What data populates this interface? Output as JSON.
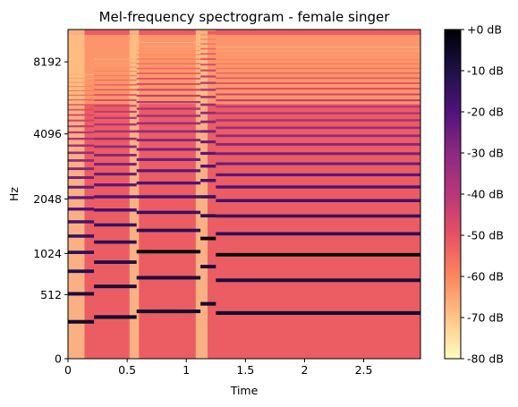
{
  "chart_data": {
    "type": "heatmap",
    "title": "Mel-frequency spectrogram - female singer",
    "xlabel": "Time",
    "ylabel": "Hz",
    "xlim": [
      0,
      2.98
    ],
    "xticks": [
      {
        "value": 0,
        "label": "0"
      },
      {
        "value": 0.5,
        "label": "0.5"
      },
      {
        "value": 1,
        "label": "1"
      },
      {
        "value": 1.5,
        "label": "1.5"
      },
      {
        "value": 2,
        "label": "2"
      },
      {
        "value": 2.5,
        "label": "2.5"
      }
    ],
    "yscale": "mel",
    "ylim": [
      0,
      11025
    ],
    "yticks": [
      {
        "value": 0,
        "label": "0"
      },
      {
        "value": 512,
        "label": "512"
      },
      {
        "value": 1024,
        "label": "1024"
      },
      {
        "value": 2048,
        "label": "2048"
      },
      {
        "value": 4096,
        "label": "4096"
      },
      {
        "value": 8192,
        "label": "8192"
      }
    ],
    "colormap": "magma",
    "colorbar": {
      "range": [
        -80,
        0
      ],
      "ticks": [
        {
          "value": 0,
          "label": "+0 dB"
        },
        {
          "value": -10,
          "label": "-10 dB"
        },
        {
          "value": -20,
          "label": "-20 dB"
        },
        {
          "value": -30,
          "label": "-30 dB"
        },
        {
          "value": -40,
          "label": "-40 dB"
        },
        {
          "value": -50,
          "label": "-50 dB"
        },
        {
          "value": -60,
          "label": "-60 dB"
        },
        {
          "value": -70,
          "label": "-70 dB"
        },
        {
          "value": -80,
          "label": "-80 dB"
        }
      ]
    },
    "notes": [
      {
        "t_start": 0.0,
        "t_end": 0.22,
        "f0_hz": 260
      },
      {
        "t_start": 0.22,
        "t_end": 0.58,
        "f0_hz": 300
      },
      {
        "t_start": 0.58,
        "t_end": 1.12,
        "f0_hz": 350
      },
      {
        "t_start": 1.12,
        "t_end": 1.25,
        "f0_hz": 420
      },
      {
        "t_start": 1.25,
        "t_end": 2.98,
        "f0_hz": 335
      }
    ],
    "grid": false,
    "legend": "colorbar-right"
  }
}
